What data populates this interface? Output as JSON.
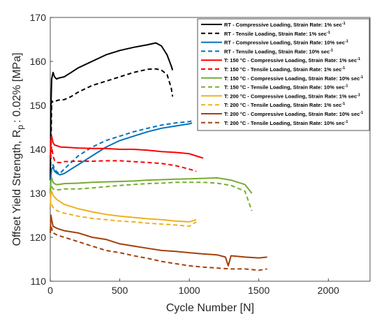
{
  "chart_data": {
    "type": "line",
    "xlabel": "Cycle Number [N]",
    "ylabel": "Offset Yield Strength, R",
    "ylabel_sub": "p",
    "ylabel_tail": ": 0.02% [MPa]",
    "xlim": [
      0,
      2300
    ],
    "ylim": [
      110,
      170
    ],
    "xticks": [
      0,
      500,
      1000,
      1500,
      2000
    ],
    "yticks": [
      110,
      120,
      130,
      140,
      150,
      160,
      170
    ],
    "grid": false,
    "legend_position": "top-right",
    "series": [
      {
        "name": "RT - Compressive Loading, Strain Rate: 1% sec",
        "color": "#000000",
        "dash": "solid",
        "x": [
          0,
          5,
          10,
          20,
          30,
          45,
          60,
          100,
          150,
          200,
          300,
          400,
          500,
          600,
          700,
          760,
          800,
          840,
          870,
          880
        ],
        "y": [
          133,
          150,
          156,
          157.5,
          156.5,
          156,
          156.2,
          156.5,
          157.5,
          158.5,
          160,
          161.5,
          162.5,
          163.2,
          163.8,
          164.2,
          163.5,
          161.5,
          159,
          158
        ]
      },
      {
        "name": "RT - Tensile Loading, Strain Rate: 1% sec",
        "color": "#000000",
        "dash": "dashed",
        "x": [
          0,
          5,
          10,
          20,
          40,
          60,
          100,
          150,
          200,
          300,
          400,
          500,
          600,
          700,
          760,
          800,
          840,
          870,
          880
        ],
        "y": [
          133,
          140,
          151,
          150.8,
          151,
          151.2,
          151.3,
          152,
          153,
          154.5,
          155.5,
          156.5,
          157.5,
          158.2,
          158.3,
          158,
          157,
          154,
          152
        ]
      },
      {
        "name": "RT - Compressive Loading, Strain Rate: 10% sec",
        "color": "#0072BD",
        "dash": "solid",
        "x": [
          0,
          5,
          10,
          20,
          30,
          50,
          70,
          100,
          150,
          200,
          300,
          400,
          500,
          600,
          700,
          800,
          900,
          1000,
          1020
        ],
        "y": [
          130,
          134,
          135.5,
          136,
          135,
          134.5,
          134.2,
          134.5,
          135.5,
          136.5,
          138.5,
          140.5,
          142,
          143,
          144,
          144.8,
          145.3,
          145.8,
          146
        ]
      },
      {
        "name": "RT - Tensile Loading, Strain Rate: 10% sec",
        "color": "#0072BD",
        "dash": "dashed",
        "x": [
          0,
          5,
          10,
          20,
          30,
          50,
          70,
          100,
          150,
          200,
          300,
          400,
          500,
          600,
          700,
          800,
          900,
          1000,
          1020
        ],
        "y": [
          130,
          134,
          135.5,
          136.5,
          135.5,
          134.8,
          134.5,
          135.5,
          137,
          138.5,
          140.5,
          142,
          143,
          144,
          144.8,
          145.5,
          146,
          146.3,
          146.5
        ]
      },
      {
        "name": "T: 150 °C - Compressive Loading, Strain Rate: 1% sec",
        "color": "#FF0000",
        "dash": "solid",
        "x": [
          0,
          5,
          10,
          20,
          30,
          50,
          80,
          100,
          200,
          300,
          400,
          500,
          600,
          700,
          800,
          900,
          1000,
          1050,
          1100
        ],
        "y": [
          138,
          142,
          143,
          141.5,
          141,
          140.8,
          140.5,
          140.5,
          140.3,
          140.2,
          140.2,
          140,
          140,
          139.8,
          139.5,
          139.3,
          139,
          138.5,
          138
        ]
      },
      {
        "name": "T: 150 °C - Tensile Loading, Strain Rate: 1% sec",
        "color": "#FF0000",
        "dash": "dashed",
        "x": [
          0,
          5,
          10,
          20,
          30,
          50,
          80,
          100,
          200,
          300,
          400,
          500,
          600,
          700,
          800,
          900,
          1000,
          1050
        ],
        "y": [
          138,
          140,
          140.5,
          138.5,
          137.5,
          137,
          137,
          137.2,
          137.3,
          137.3,
          137.4,
          137.4,
          137.2,
          137,
          136.8,
          136.3,
          135.5,
          135
        ]
      },
      {
        "name": "T: 150 °C - Compressive Loading, Strain Rate: 10% sec",
        "color": "#77AC30",
        "dash": "solid",
        "x": [
          0,
          5,
          10,
          20,
          40,
          60,
          100,
          200,
          300,
          400,
          500,
          600,
          700,
          800,
          900,
          1000,
          1100,
          1200,
          1300,
          1400,
          1450
        ],
        "y": [
          130,
          133,
          133.5,
          132.5,
          132,
          132,
          132.2,
          132.3,
          132.5,
          132.6,
          132.7,
          132.8,
          133,
          133.1,
          133.2,
          133.3,
          133.4,
          133.5,
          133,
          132,
          130
        ]
      },
      {
        "name": "T: 150 °C - Tensile Loading, Strain Rate: 10% sec",
        "color": "#77AC30",
        "dash": "dashed",
        "x": [
          0,
          5,
          10,
          20,
          40,
          60,
          100,
          200,
          300,
          400,
          500,
          600,
          700,
          800,
          900,
          1000,
          1100,
          1200,
          1300,
          1400,
          1450
        ],
        "y": [
          130,
          131.5,
          131.5,
          131,
          130.8,
          130.8,
          131,
          131,
          131.2,
          131.5,
          131.8,
          132,
          132.2,
          132.3,
          132.5,
          132.5,
          132.5,
          132.3,
          131.8,
          130.5,
          126
        ]
      },
      {
        "name": "T: 200 °C - Compressive Loading, Strain Rate: 1% sec",
        "color": "#EDB120",
        "dash": "solid",
        "x": [
          0,
          5,
          10,
          20,
          50,
          100,
          200,
          300,
          400,
          500,
          600,
          700,
          800,
          900,
          1000,
          1050
        ],
        "y": [
          127,
          130.5,
          130.5,
          129.5,
          128.5,
          127.5,
          126.5,
          125.8,
          125.2,
          124.8,
          124.5,
          124.2,
          124,
          123.7,
          123.5,
          124
        ]
      },
      {
        "name": "T: 200 °C - Tensile Loading, Strain Rate: 1% sec",
        "color": "#EDB120",
        "dash": "dashed",
        "x": [
          0,
          5,
          10,
          20,
          50,
          100,
          200,
          300,
          400,
          500,
          600,
          700,
          800,
          900,
          1000,
          1050
        ],
        "y": [
          127,
          128,
          127.5,
          126.8,
          126,
          125.5,
          124.8,
          124.3,
          124,
          123.7,
          123.5,
          123.2,
          123,
          122.8,
          122.5,
          123.5
        ]
      },
      {
        "name": "T: 200 °C - Compressive Loading, Strain Rate: 10% sec",
        "color": "#A2400C",
        "dash": "solid",
        "x": [
          0,
          5,
          10,
          20,
          50,
          100,
          200,
          300,
          400,
          500,
          600,
          700,
          800,
          900,
          1000,
          1100,
          1200,
          1260,
          1280,
          1300,
          1400,
          1500,
          1560
        ],
        "y": [
          121,
          125,
          124,
          122.5,
          122,
          121.5,
          121,
          120,
          119.5,
          118.5,
          118,
          117.5,
          117,
          116.8,
          116.5,
          116.2,
          116,
          115.5,
          113.5,
          115.8,
          115.5,
          115.3,
          115.5
        ]
      },
      {
        "name": "T: 200 °C - Tensile Loading, Strain Rate: 10% sec",
        "color": "#A2400C",
        "dash": "dashed",
        "x": [
          0,
          5,
          10,
          20,
          50,
          100,
          200,
          300,
          400,
          500,
          600,
          700,
          800,
          900,
          1000,
          1100,
          1200,
          1300,
          1400,
          1500,
          1560
        ],
        "y": [
          121,
          122.5,
          122,
          121,
          120.5,
          120,
          119,
          118,
          117,
          116.5,
          115.8,
          115.2,
          114.5,
          114,
          113.5,
          113.2,
          113,
          112.8,
          112.8,
          112.5,
          112.8
        ]
      }
    ]
  }
}
